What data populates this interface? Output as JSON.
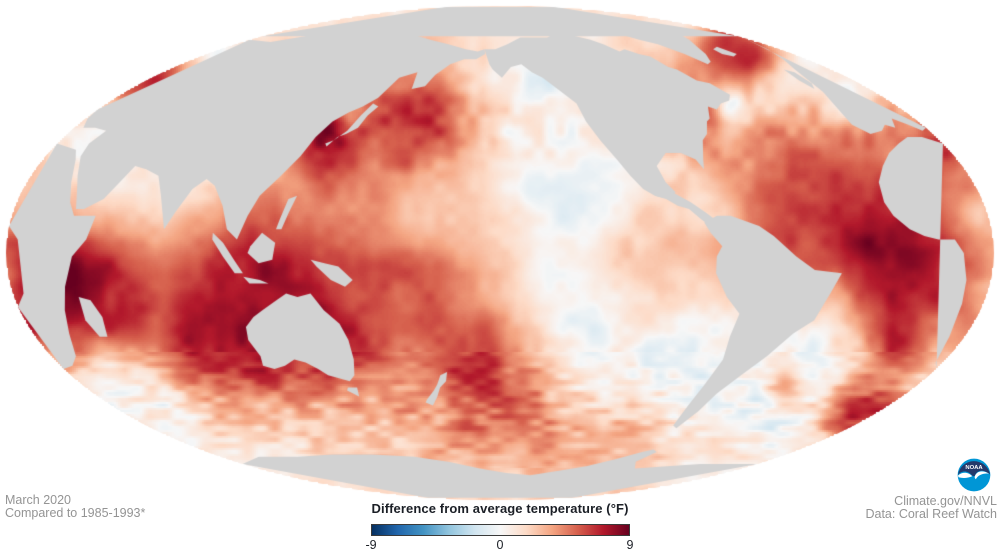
{
  "map": {
    "background_color": "#ffffff",
    "land_color": "#d2d2d2",
    "value_range": {
      "min": -9,
      "max": 9,
      "units": "°F"
    }
  },
  "footer_left": {
    "date": "March 2020",
    "baseline": "Compared to 1985-1993*"
  },
  "legend": {
    "title": "Difference from average temperature (°F)",
    "tick_min": "-9",
    "tick_zero": "0",
    "tick_max": "9",
    "gradient": [
      "#053061",
      "#2166ac",
      "#4393c3",
      "#92c5de",
      "#d1e5f0",
      "#f7f7f7",
      "#fddbc7",
      "#f4a582",
      "#d6604d",
      "#b2182b",
      "#67001f"
    ]
  },
  "credit": {
    "source": "Climate.gov/NNVL",
    "data": "Data: Coral Reef Watch",
    "logo_text": "NOAA"
  }
}
